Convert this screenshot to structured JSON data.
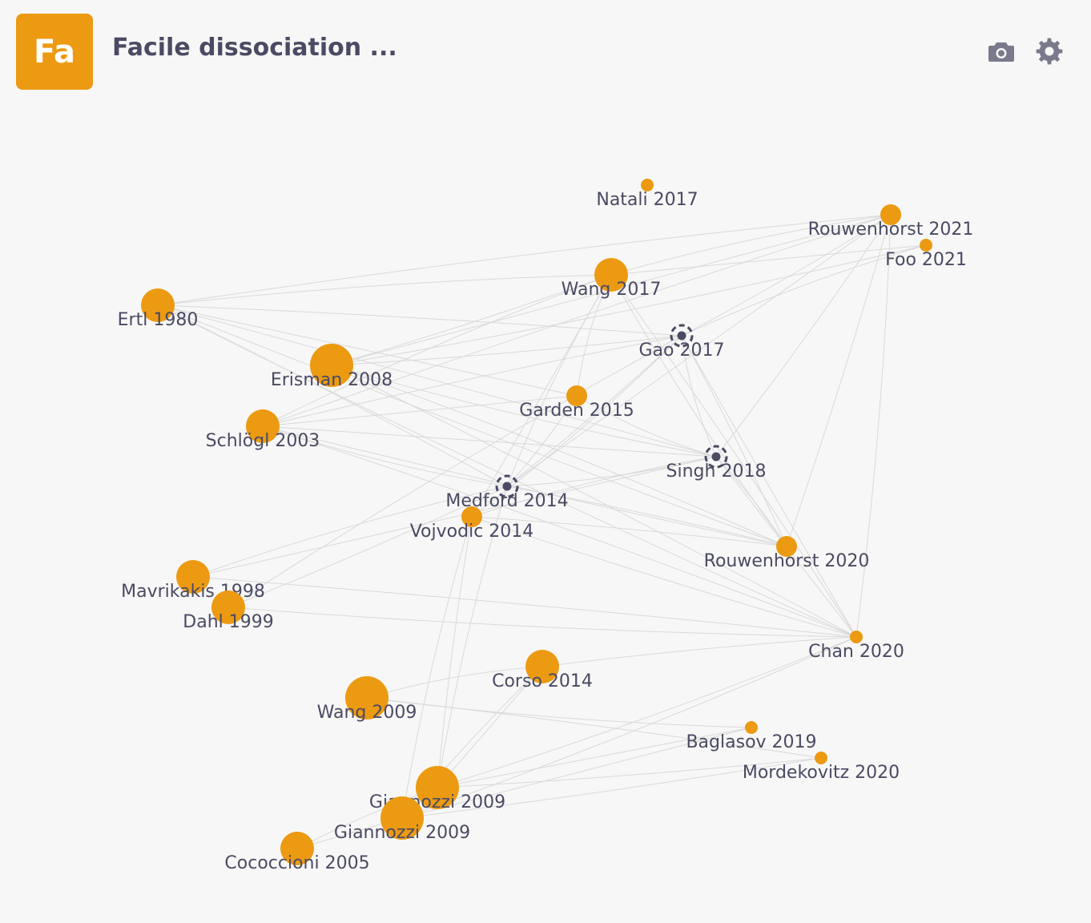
{
  "header": {
    "badge": "Fa",
    "title": "Facile dissociation ...",
    "badge_color": "#ec9a12",
    "actions": [
      "camera-icon",
      "gear-icon"
    ]
  },
  "graph": {
    "node_color": "#ec9a12",
    "selected_node_color": "#4a4a63",
    "nodes": [
      {
        "id": "natali2017",
        "label": "Natali 2017",
        "size": 1,
        "state": "normal"
      },
      {
        "id": "rouwenhorst2021",
        "label": "Rouwenhorst 2021",
        "size": 2,
        "state": "normal"
      },
      {
        "id": "foo2021",
        "label": "Foo 2021",
        "size": 1,
        "state": "normal"
      },
      {
        "id": "wang2017",
        "label": "Wang 2017",
        "size": 3,
        "state": "normal"
      },
      {
        "id": "ertl1980",
        "label": "Ertl 1980",
        "size": 3,
        "state": "normal"
      },
      {
        "id": "gao2017",
        "label": "Gao 2017",
        "size": 2,
        "state": "selected"
      },
      {
        "id": "erisman2008",
        "label": "Erisman 2008",
        "size": 4,
        "state": "normal"
      },
      {
        "id": "garden2015",
        "label": "Garden 2015",
        "size": 2,
        "state": "normal"
      },
      {
        "id": "schlogl2003",
        "label": "Schlögl 2003",
        "size": 3,
        "state": "normal"
      },
      {
        "id": "singh2018",
        "label": "Singh 2018",
        "size": 2,
        "state": "selected"
      },
      {
        "id": "medford2014",
        "label": "Medford 2014",
        "size": 2,
        "state": "selected"
      },
      {
        "id": "vojvodic2014",
        "label": "Vojvodic 2014",
        "size": 2,
        "state": "normal"
      },
      {
        "id": "rouwenhorst2020",
        "label": "Rouwenhorst 2020",
        "size": 2,
        "state": "normal"
      },
      {
        "id": "mavrikakis1998",
        "label": "Mavrikakis 1998",
        "size": 3,
        "state": "normal"
      },
      {
        "id": "dahl1999",
        "label": "Dahl 1999",
        "size": 3,
        "state": "normal"
      },
      {
        "id": "chan2020",
        "label": "Chan 2020",
        "size": 1,
        "state": "normal"
      },
      {
        "id": "corso2014",
        "label": "Corso 2014",
        "size": 3,
        "state": "normal"
      },
      {
        "id": "wang2009",
        "label": "Wang 2009",
        "size": 4,
        "state": "normal"
      },
      {
        "id": "baglasov2019",
        "label": "Baglasov 2019",
        "size": 1,
        "state": "normal"
      },
      {
        "id": "mordekovitz2020",
        "label": "Mordekovitz 2020",
        "size": 1,
        "state": "normal"
      },
      {
        "id": "giannozzi2009a",
        "label": "Giannozzi 2009",
        "size": 4,
        "state": "normal"
      },
      {
        "id": "giannozzi2009b",
        "label": "Giannozzi 2009",
        "size": 4,
        "state": "normal"
      },
      {
        "id": "cococcioni2005",
        "label": "Cococcioni 2005",
        "size": 3,
        "state": "normal"
      }
    ],
    "edges": [
      [
        "ertl1980",
        "wang2017"
      ],
      [
        "ertl1980",
        "gao2017"
      ],
      [
        "ertl1980",
        "singh2018"
      ],
      [
        "ertl1980",
        "rouwenhorst2020"
      ],
      [
        "ertl1980",
        "chan2020"
      ],
      [
        "ertl1980",
        "rouwenhorst2021"
      ],
      [
        "ertl1980",
        "medford2014"
      ],
      [
        "ertl1980",
        "garden2015"
      ],
      [
        "erisman2008",
        "gao2017"
      ],
      [
        "erisman2008",
        "singh2018"
      ],
      [
        "erisman2008",
        "rouwenhorst2020"
      ],
      [
        "erisman2008",
        "chan2020"
      ],
      [
        "erisman2008",
        "rouwenhorst2021"
      ],
      [
        "erisman2008",
        "wang2017"
      ],
      [
        "erisman2008",
        "foo2021"
      ],
      [
        "schlogl2003",
        "wang2017"
      ],
      [
        "schlogl2003",
        "gao2017"
      ],
      [
        "schlogl2003",
        "singh2018"
      ],
      [
        "schlogl2003",
        "rouwenhorst2020"
      ],
      [
        "schlogl2003",
        "medford2014"
      ],
      [
        "schlogl2003",
        "chan2020"
      ],
      [
        "schlogl2003",
        "rouwenhorst2021"
      ],
      [
        "schlogl2003",
        "garden2015"
      ],
      [
        "medford2014",
        "gao2017"
      ],
      [
        "medford2014",
        "singh2018"
      ],
      [
        "medford2014",
        "wang2017"
      ],
      [
        "medford2014",
        "rouwenhorst2020"
      ],
      [
        "medford2014",
        "rouwenhorst2021"
      ],
      [
        "medford2014",
        "garden2015"
      ],
      [
        "vojvodic2014",
        "gao2017"
      ],
      [
        "vojvodic2014",
        "singh2018"
      ],
      [
        "vojvodic2014",
        "rouwenhorst2020"
      ],
      [
        "vojvodic2014",
        "wang2017"
      ],
      [
        "vojvodic2014",
        "chan2020"
      ],
      [
        "garden2015",
        "singh2018"
      ],
      [
        "garden2015",
        "wang2017"
      ],
      [
        "gao2017",
        "rouwenhorst2020"
      ],
      [
        "gao2017",
        "chan2020"
      ],
      [
        "gao2017",
        "rouwenhorst2021"
      ],
      [
        "gao2017",
        "singh2018"
      ],
      [
        "gao2017",
        "foo2021"
      ],
      [
        "singh2018",
        "rouwenhorst2020"
      ],
      [
        "singh2018",
        "chan2020"
      ],
      [
        "singh2018",
        "rouwenhorst2021"
      ],
      [
        "wang2017",
        "rouwenhorst2020"
      ],
      [
        "wang2017",
        "rouwenhorst2021"
      ],
      [
        "wang2017",
        "chan2020"
      ],
      [
        "wang2017",
        "foo2021"
      ],
      [
        "rouwenhorst2020",
        "rouwenhorst2021"
      ],
      [
        "chan2020",
        "rouwenhorst2021"
      ],
      [
        "mavrikakis1998",
        "medford2014"
      ],
      [
        "mavrikakis1998",
        "chan2020"
      ],
      [
        "mavrikakis1998",
        "singh2018"
      ],
      [
        "dahl1999",
        "medford2014"
      ],
      [
        "dahl1999",
        "chan2020"
      ],
      [
        "dahl1999",
        "gao2017"
      ],
      [
        "corso2014",
        "chan2020"
      ],
      [
        "corso2014",
        "giannozzi2009a"
      ],
      [
        "corso2014",
        "giannozzi2009b"
      ],
      [
        "wang2009",
        "baglasov2019"
      ],
      [
        "wang2009",
        "corso2014"
      ],
      [
        "wang2009",
        "mordekovitz2020"
      ],
      [
        "giannozzi2009a",
        "baglasov2019"
      ],
      [
        "giannozzi2009a",
        "mordekovitz2020"
      ],
      [
        "giannozzi2009a",
        "chan2020"
      ],
      [
        "giannozzi2009a",
        "medford2014"
      ],
      [
        "giannozzi2009a",
        "vojvodic2014"
      ],
      [
        "giannozzi2009b",
        "baglasov2019"
      ],
      [
        "giannozzi2009b",
        "mordekovitz2020"
      ],
      [
        "giannozzi2009b",
        "chan2020"
      ],
      [
        "giannozzi2009b",
        "vojvodic2014"
      ],
      [
        "cococcioni2005",
        "giannozzi2009a"
      ],
      [
        "cococcioni2005",
        "giannozzi2009b"
      ]
    ]
  }
}
